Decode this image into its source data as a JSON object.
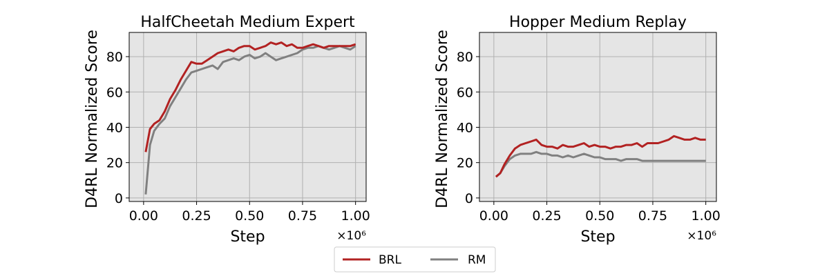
{
  "chart_data": [
    {
      "type": "line",
      "title": "HalfCheetah Medium Expert",
      "x_label": "Step",
      "y_label": "D4RL Normalized Score",
      "x_offset_label": "×10⁶",
      "x": [
        0.01,
        0.03,
        0.05,
        0.075,
        0.1,
        0.125,
        0.15,
        0.175,
        0.2,
        0.225,
        0.25,
        0.275,
        0.3,
        0.325,
        0.35,
        0.375,
        0.4,
        0.425,
        0.45,
        0.475,
        0.5,
        0.525,
        0.55,
        0.575,
        0.6,
        0.625,
        0.65,
        0.675,
        0.7,
        0.725,
        0.75,
        0.775,
        0.8,
        0.825,
        0.85,
        0.875,
        0.9,
        0.925,
        0.95,
        0.975,
        1.0
      ],
      "series": [
        {
          "name": "BRL",
          "color": "#b22222",
          "values": [
            26,
            39,
            42,
            44,
            49,
            56,
            61,
            67,
            72,
            77,
            76,
            76,
            78,
            80,
            82,
            83,
            84,
            83,
            85,
            86,
            86,
            84,
            85,
            86,
            88,
            87,
            88,
            86,
            87,
            85,
            85,
            86,
            87,
            86,
            85,
            86,
            86,
            86,
            86,
            86,
            87
          ]
        },
        {
          "name": "RM",
          "color": "#808080",
          "values": [
            2,
            30,
            38,
            42,
            45,
            52,
            57,
            62,
            67,
            71,
            72,
            73,
            74,
            75,
            73,
            77,
            78,
            79,
            78,
            80,
            81,
            79,
            80,
            82,
            80,
            78,
            79,
            80,
            81,
            82,
            84,
            85,
            85,
            86,
            85,
            84,
            85,
            86,
            85,
            84,
            86
          ]
        }
      ],
      "xlim": [
        -0.068,
        1.05
      ],
      "ylim": [
        -2,
        93.7
      ],
      "xticks": [
        {
          "value": 0,
          "label": "0.00"
        },
        0.25,
        {
          "value": 0.5,
          "label": "0.50"
        },
        0.75,
        {
          "value": 1,
          "label": "1.00"
        }
      ],
      "yticks": [
        0,
        20,
        40,
        60,
        80
      ],
      "grid": true
    },
    {
      "type": "line",
      "title": "Hopper Medium Replay",
      "x_label": "Step",
      "y_label": "D4RL Normalized Score",
      "x_offset_label": "×10⁶",
      "x": [
        0.01,
        0.03,
        0.05,
        0.075,
        0.1,
        0.125,
        0.15,
        0.175,
        0.2,
        0.225,
        0.25,
        0.275,
        0.3,
        0.325,
        0.35,
        0.375,
        0.4,
        0.425,
        0.45,
        0.475,
        0.5,
        0.525,
        0.55,
        0.575,
        0.6,
        0.625,
        0.65,
        0.675,
        0.7,
        0.725,
        0.75,
        0.775,
        0.8,
        0.825,
        0.85,
        0.875,
        0.9,
        0.925,
        0.95,
        0.975,
        1.0
      ],
      "series": [
        {
          "color": "#b22222",
          "values": [
            12,
            14,
            19,
            24,
            28,
            30,
            31,
            32,
            33,
            30,
            29,
            29,
            28,
            30,
            29,
            29,
            30,
            31,
            29,
            30,
            29,
            29,
            28,
            29,
            29,
            30,
            30,
            31,
            29,
            31,
            31,
            31,
            32,
            33,
            35,
            34,
            33,
            33,
            34,
            33,
            33
          ]
        },
        {
          "color": "#808080",
          "values": [
            12,
            14,
            18,
            22,
            24,
            25,
            25,
            25,
            26,
            25,
            25,
            24,
            24,
            23,
            24,
            23,
            24,
            25,
            24,
            23,
            23,
            22,
            22,
            22,
            21,
            22,
            22,
            22,
            21,
            21,
            21,
            21,
            21,
            21,
            21,
            21,
            21,
            21,
            21,
            21,
            21
          ]
        }
      ],
      "xlim": [
        -0.068,
        1.05
      ],
      "ylim": [
        -2,
        93.7
      ],
      "xticks": [
        {
          "value": 0,
          "label": "0.00"
        },
        0.25,
        {
          "value": 0.5,
          "label": "0.50"
        },
        0.75,
        {
          "value": 1,
          "label": "1.00"
        }
      ],
      "yticks": [
        0,
        20,
        40,
        60,
        80
      ],
      "grid": true
    }
  ]
}
